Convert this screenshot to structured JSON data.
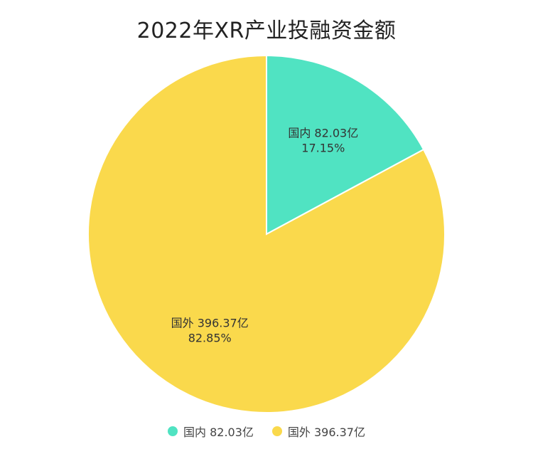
{
  "chart_data": {
    "type": "pie",
    "title": "2022年XR产业投融资金额",
    "unit": "亿",
    "slices": [
      {
        "name": "国内",
        "value": 82.03,
        "value_text": "82.03亿",
        "percent": 17.15,
        "percent_text": "17.15%",
        "color": "#50E3C2"
      },
      {
        "name": "国外",
        "value": 396.37,
        "value_text": "396.37亿",
        "percent": 82.85,
        "percent_text": "82.85%",
        "color": "#FAD94C"
      }
    ],
    "legend": {
      "position": "bottom",
      "items": [
        {
          "label": "国内 82.03亿",
          "color": "#50E3C2"
        },
        {
          "label": "国外 396.37亿",
          "color": "#FAD94C"
        }
      ]
    },
    "start_angle_deg": 0,
    "direction": "clockwise"
  }
}
